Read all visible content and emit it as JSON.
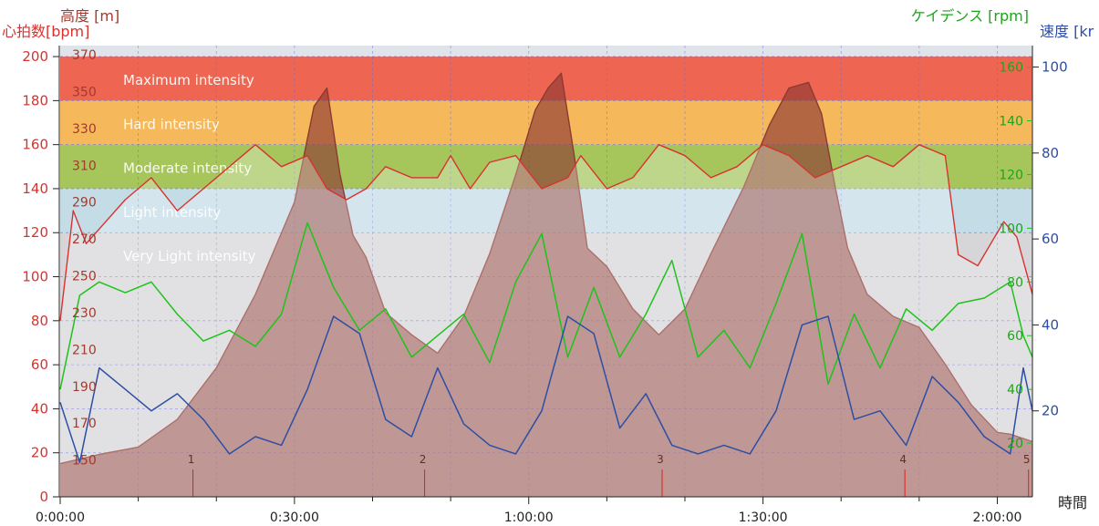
{
  "chart_data": {
    "type": "line",
    "axis_titles": {
      "altitude": "高度 [m]",
      "heart_rate": "心拍数[bpm]",
      "cadence": "ケイデンス [rpm]",
      "speed": "速度 [kr",
      "time": "時間"
    },
    "heart_rate_ticks": [
      "200",
      "180",
      "160",
      "140",
      "120",
      "100",
      "80",
      "60",
      "40",
      "20",
      "0"
    ],
    "altitude_ticks": [
      "370",
      "350",
      "330",
      "310",
      "290",
      "270",
      "250",
      "230",
      "210",
      "190",
      "170",
      "150"
    ],
    "cadence_ticks": [
      "160",
      "140",
      "120",
      "100",
      "80",
      "60",
      "40",
      "20"
    ],
    "speed_ticks": [
      "100",
      "80",
      "60",
      "40",
      "20"
    ],
    "time_ticks": [
      "0:00:00",
      "0:30:00",
      "1:00:00",
      "1:30:00",
      "2:00:00"
    ],
    "axes": {
      "time_seconds": [
        0,
        7470
      ],
      "heart_rate_bpm": [
        0,
        205
      ],
      "altitude_m": [
        130,
        375
      ],
      "cadence_rpm": [
        0,
        168
      ],
      "speed_kmh": [
        0,
        105
      ]
    },
    "zones": [
      {
        "label": "Maximum intensity",
        "from": 180,
        "to": 200,
        "color": "#ee6652"
      },
      {
        "label": "Hard intensity",
        "from": 160,
        "to": 180,
        "color": "#f5b95c"
      },
      {
        "label": "Moderate intensity",
        "from": 140,
        "to": 160,
        "color": "#a6c65c"
      },
      {
        "label": "Light intensity",
        "from": 120,
        "to": 140,
        "color": "#c4dce6"
      },
      {
        "label": "Very Light intensity",
        "from": 0,
        "to": 120,
        "color": "#d6d6d8"
      }
    ],
    "laps": [
      {
        "label": "1",
        "time": 1020
      },
      {
        "label": "2",
        "time": 2800
      },
      {
        "label": "3",
        "time": 4625
      },
      {
        "label": "4",
        "time": 6490
      },
      {
        "label": "5",
        "time": 7440
      }
    ],
    "series": [
      {
        "name": "altitude",
        "axis": "altitude_m",
        "color": "#8c3a32",
        "points": [
          [
            0,
            148
          ],
          [
            300,
            153
          ],
          [
            600,
            157
          ],
          [
            900,
            172
          ],
          [
            1200,
            200
          ],
          [
            1500,
            240
          ],
          [
            1800,
            290
          ],
          [
            1950,
            342
          ],
          [
            2050,
            352
          ],
          [
            2150,
            305
          ],
          [
            2250,
            272
          ],
          [
            2350,
            260
          ],
          [
            2500,
            230
          ],
          [
            2700,
            218
          ],
          [
            2900,
            208
          ],
          [
            3100,
            228
          ],
          [
            3300,
            262
          ],
          [
            3500,
            305
          ],
          [
            3650,
            340
          ],
          [
            3750,
            352
          ],
          [
            3850,
            360
          ],
          [
            3950,
            315
          ],
          [
            4050,
            265
          ],
          [
            4200,
            255
          ],
          [
            4400,
            232
          ],
          [
            4600,
            218
          ],
          [
            4800,
            232
          ],
          [
            5000,
            262
          ],
          [
            5250,
            298
          ],
          [
            5450,
            332
          ],
          [
            5600,
            352
          ],
          [
            5750,
            355
          ],
          [
            5850,
            338
          ],
          [
            5950,
            300
          ],
          [
            6050,
            265
          ],
          [
            6200,
            240
          ],
          [
            6400,
            228
          ],
          [
            6600,
            222
          ],
          [
            6800,
            202
          ],
          [
            7000,
            180
          ],
          [
            7200,
            165
          ],
          [
            7300,
            164
          ],
          [
            7470,
            160
          ]
        ]
      },
      {
        "name": "heart_rate",
        "axis": "heart_rate_bpm",
        "color": "#d8322f",
        "points": [
          [
            0,
            80
          ],
          [
            100,
            130
          ],
          [
            200,
            115
          ],
          [
            350,
            125
          ],
          [
            500,
            135
          ],
          [
            700,
            145
          ],
          [
            900,
            130
          ],
          [
            1100,
            140
          ],
          [
            1300,
            150
          ],
          [
            1500,
            160
          ],
          [
            1700,
            150
          ],
          [
            1900,
            155
          ],
          [
            2050,
            140
          ],
          [
            2200,
            135
          ],
          [
            2350,
            140
          ],
          [
            2500,
            150
          ],
          [
            2700,
            145
          ],
          [
            2900,
            145
          ],
          [
            3000,
            155
          ],
          [
            3150,
            140
          ],
          [
            3300,
            152
          ],
          [
            3500,
            155
          ],
          [
            3700,
            140
          ],
          [
            3900,
            145
          ],
          [
            4000,
            155
          ],
          [
            4200,
            140
          ],
          [
            4400,
            145
          ],
          [
            4600,
            160
          ],
          [
            4800,
            155
          ],
          [
            5000,
            145
          ],
          [
            5200,
            150
          ],
          [
            5400,
            160
          ],
          [
            5600,
            155
          ],
          [
            5800,
            145
          ],
          [
            6000,
            150
          ],
          [
            6200,
            155
          ],
          [
            6400,
            150
          ],
          [
            6600,
            160
          ],
          [
            6800,
            155
          ],
          [
            6900,
            110
          ],
          [
            7050,
            105
          ],
          [
            7150,
            115
          ],
          [
            7250,
            125
          ],
          [
            7350,
            118
          ],
          [
            7470,
            92
          ]
        ]
      },
      {
        "name": "cadence",
        "axis": "cadence_rpm",
        "color": "#1fc21b",
        "points": [
          [
            0,
            40
          ],
          [
            150,
            75
          ],
          [
            300,
            80
          ],
          [
            500,
            76
          ],
          [
            700,
            80
          ],
          [
            900,
            68
          ],
          [
            1100,
            58
          ],
          [
            1300,
            62
          ],
          [
            1500,
            56
          ],
          [
            1700,
            68
          ],
          [
            1900,
            102
          ],
          [
            2100,
            78
          ],
          [
            2300,
            62
          ],
          [
            2500,
            70
          ],
          [
            2700,
            52
          ],
          [
            2900,
            60
          ],
          [
            3100,
            68
          ],
          [
            3300,
            50
          ],
          [
            3500,
            80
          ],
          [
            3700,
            98
          ],
          [
            3900,
            52
          ],
          [
            4100,
            78
          ],
          [
            4300,
            52
          ],
          [
            4500,
            68
          ],
          [
            4700,
            88
          ],
          [
            4900,
            52
          ],
          [
            5100,
            62
          ],
          [
            5300,
            48
          ],
          [
            5500,
            72
          ],
          [
            5700,
            98
          ],
          [
            5900,
            42
          ],
          [
            6100,
            68
          ],
          [
            6300,
            48
          ],
          [
            6500,
            70
          ],
          [
            6700,
            62
          ],
          [
            6900,
            72
          ],
          [
            7100,
            74
          ],
          [
            7300,
            80
          ],
          [
            7400,
            60
          ],
          [
            7470,
            52
          ]
        ]
      },
      {
        "name": "speed",
        "axis": "speed_kmh",
        "color": "#2d4ea4",
        "points": [
          [
            0,
            22
          ],
          [
            150,
            8
          ],
          [
            300,
            30
          ],
          [
            500,
            25
          ],
          [
            700,
            20
          ],
          [
            900,
            24
          ],
          [
            1100,
            18
          ],
          [
            1300,
            10
          ],
          [
            1500,
            14
          ],
          [
            1700,
            12
          ],
          [
            1900,
            25
          ],
          [
            2100,
            42
          ],
          [
            2300,
            38
          ],
          [
            2500,
            18
          ],
          [
            2700,
            14
          ],
          [
            2900,
            30
          ],
          [
            3100,
            17
          ],
          [
            3300,
            12
          ],
          [
            3500,
            10
          ],
          [
            3700,
            20
          ],
          [
            3900,
            42
          ],
          [
            4100,
            38
          ],
          [
            4300,
            16
          ],
          [
            4500,
            24
          ],
          [
            4700,
            12
          ],
          [
            4900,
            10
          ],
          [
            5100,
            12
          ],
          [
            5300,
            10
          ],
          [
            5500,
            20
          ],
          [
            5700,
            40
          ],
          [
            5900,
            42
          ],
          [
            6100,
            18
          ],
          [
            6300,
            20
          ],
          [
            6500,
            12
          ],
          [
            6700,
            28
          ],
          [
            6900,
            22
          ],
          [
            7100,
            14
          ],
          [
            7300,
            10
          ],
          [
            7400,
            30
          ],
          [
            7470,
            20
          ]
        ]
      }
    ]
  }
}
